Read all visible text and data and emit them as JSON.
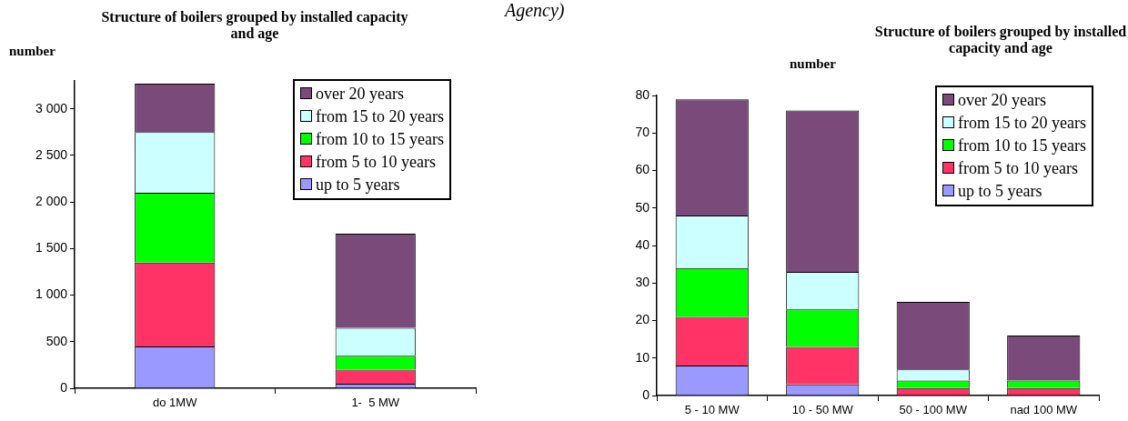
{
  "chart_data": [
    {
      "type": "bar",
      "title": "Structure of boilers grouped by installed capacity and age",
      "ylabel": "number",
      "annotations": [
        "Agency)"
      ],
      "categories": [
        "do 1MW",
        "1-  5 MW"
      ],
      "stacked": true,
      "legend": "top right",
      "grid": false,
      "series": [
        {
          "name": "up to 5 years",
          "color": "#9999ff",
          "values": [
            450,
            50
          ]
        },
        {
          "name": "from 5 to 10 years",
          "color": "#ff3366",
          "values": [
            900,
            150
          ]
        },
        {
          "name": "from 10 to 15 years",
          "color": "#00ff00",
          "values": [
            750,
            150
          ]
        },
        {
          "name": "from 15 to 20 years",
          "color": "#ccffff",
          "values": [
            650,
            300
          ]
        },
        {
          "name": "over 20 years",
          "color": "#7a4a7a",
          "values": [
            520,
            1010
          ]
        }
      ],
      "ylim": [
        0,
        3300
      ],
      "yticks": [
        0,
        500,
        {
          "value": 1000,
          "label": "1 000"
        },
        {
          "value": 1500,
          "label": "1 500"
        },
        {
          "value": 2000,
          "label": "2 000"
        },
        {
          "value": 2500,
          "label": "2 500"
        },
        {
          "value": 3000,
          "label": "3 000"
        }
      ]
    },
    {
      "type": "bar",
      "title": "Structure of boilers grouped by installed capacity and age",
      "ylabel": "number",
      "categories": [
        "5 - 10 MW",
        "10 - 50 MW",
        "50 - 100 MW",
        "nad 100 MW"
      ],
      "stacked": true,
      "legend": "top right",
      "grid": false,
      "series": [
        {
          "name": "up to 5 years",
          "color": "#9999ff",
          "values": [
            8,
            3,
            0,
            0
          ]
        },
        {
          "name": "from 5 to 10 years",
          "color": "#ff3366",
          "values": [
            13,
            10,
            2,
            2
          ]
        },
        {
          "name": "from 10 to 15 years",
          "color": "#00ff00",
          "values": [
            13,
            10,
            2,
            2
          ]
        },
        {
          "name": "from 15 to 20 years",
          "color": "#ccffff",
          "values": [
            14,
            10,
            3,
            0
          ]
        },
        {
          "name": "over 20 years",
          "color": "#7a4a7a",
          "values": [
            31,
            43,
            18,
            12
          ]
        }
      ],
      "ylim": [
        0,
        80
      ],
      "yticks": [
        0,
        10,
        20,
        30,
        40,
        50,
        60,
        70,
        80
      ]
    }
  ]
}
